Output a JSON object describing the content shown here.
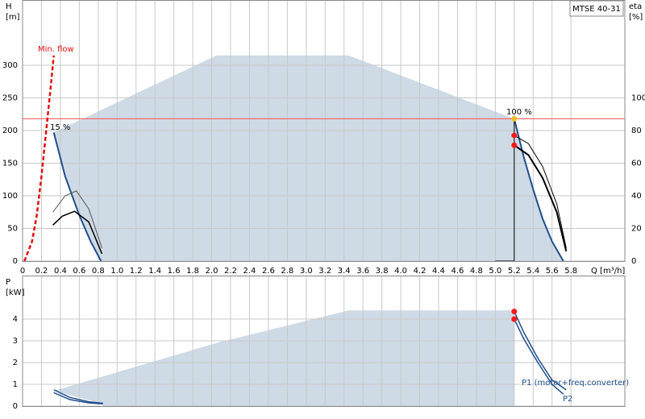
{
  "chart_data": [
    {
      "type": "line",
      "title": "MTSE 40-31",
      "y_label": [
        "H",
        "[m]"
      ],
      "y2_label": [
        "eta",
        "[%]"
      ],
      "x_label": "Q [m³/h]",
      "xlim": [
        0,
        6.37
      ],
      "ylim": [
        0,
        400
      ],
      "y2lim": [
        0,
        160
      ],
      "xticks": [
        0,
        0.2,
        0.4,
        0.6,
        0.8,
        {
          "value": 1,
          "label": "1.0"
        },
        1.2,
        1.4,
        1.6,
        1.8,
        {
          "value": 2,
          "label": "2.0"
        },
        2.2,
        2.4,
        2.6,
        2.8,
        {
          "value": 3,
          "label": "3.0"
        },
        3.2,
        3.4,
        3.6,
        3.8,
        {
          "value": 4,
          "label": "4.0"
        },
        4.2,
        4.4,
        4.6,
        4.8,
        {
          "value": 5,
          "label": "5.0"
        },
        5.2,
        5.4,
        5.6,
        5.8
      ],
      "yticks": [
        0,
        50,
        100,
        150,
        200,
        250,
        300
      ],
      "y2ticks": [
        0,
        20,
        40,
        60,
        80,
        100
      ],
      "grid": true,
      "annotations": [
        "Min. flow",
        "15 %",
        "100 %"
      ],
      "hlines": [
        {
          "value": 218,
          "color": "#ff5050"
        }
      ],
      "series": [
        {
          "fill": "#c5d3e1",
          "color": "#c5d3e1",
          "x": [
            0.33,
            2.05,
            3.45,
            5.2,
            5.3,
            5.4,
            5.5,
            5.6,
            5.72,
            0.83,
            0.72,
            0.6,
            0.45
          ],
          "values": [
            197,
            315,
            315,
            218,
            160,
            110,
            65,
            30,
            0,
            0,
            30,
            70,
            130
          ]
        },
        {
          "color": "#e01010",
          "dash": true,
          "width": 2.5,
          "x": [
            0.02,
            0.1,
            0.15,
            0.2,
            0.25,
            0.3,
            0.33
          ],
          "values": [
            0,
            30,
            70,
            130,
            200,
            270,
            315
          ]
        },
        {
          "color": "#1f4e8c",
          "width": 2,
          "x": [
            0.33,
            0.45,
            0.6,
            0.72,
            0.83
          ],
          "values": [
            197,
            130,
            70,
            30,
            0
          ]
        },
        {
          "color": "#1f4e8c",
          "width": 2,
          "x": [
            5.2,
            5.3,
            5.4,
            5.5,
            5.6,
            5.72
          ],
          "values": [
            218,
            160,
            110,
            65,
            30,
            0
          ]
        },
        {
          "color": "#000000",
          "width": 1,
          "x": [
            5.2,
            5.0
          ],
          "values": [
            0,
            0
          ]
        },
        {
          "color": "#000000",
          "width": 1,
          "x": [
            5.2,
            5.2
          ],
          "values": [
            0,
            218
          ]
        },
        {
          "color": "#555555",
          "width": 1,
          "axis": "y2",
          "x": [
            0.32,
            0.45,
            0.57,
            0.7,
            0.84
          ],
          "values": [
            30,
            40,
            43,
            32,
            8
          ]
        },
        {
          "color": "#000000",
          "width": 1.5,
          "axis": "y2",
          "x": [
            0.32,
            0.42,
            0.55,
            0.7,
            0.84
          ],
          "values": [
            22,
            27.5,
            30.5,
            24,
            4.4
          ]
        },
        {
          "color": "#000000",
          "width": 1,
          "axis": "y2",
          "x": [
            5.2,
            5.35,
            5.5,
            5.65,
            5.75
          ],
          "values": [
            77,
            72,
            58,
            35,
            8
          ]
        },
        {
          "color": "#000000",
          "width": 2,
          "axis": "y2",
          "x": [
            5.2,
            5.35,
            5.5,
            5.65,
            5.75
          ],
          "values": [
            71,
            65,
            51,
            30,
            6
          ]
        },
        {
          "color": "#f0c020",
          "marker": true,
          "x": [
            5.2
          ],
          "values": [
            218
          ]
        },
        {
          "color": "#ff1a1a",
          "marker": true,
          "axis": "y2",
          "x": [
            5.2,
            5.2
          ],
          "values": [
            77,
            71
          ]
        }
      ]
    },
    {
      "type": "line",
      "y_label": [
        "P",
        "[kW]"
      ],
      "xlim": [
        0,
        6.37
      ],
      "ylim": [
        0,
        6
      ],
      "xticks": [
        0,
        0.2,
        0.4,
        0.6,
        0.8,
        1,
        1.2,
        1.4,
        1.6,
        1.8,
        2,
        2.2,
        2.4,
        2.6,
        2.8,
        3,
        3.2,
        3.4,
        3.6,
        3.8,
        4,
        4.2,
        4.4,
        4.6,
        4.8,
        5,
        5.2,
        5.4,
        5.6,
        5.8
      ],
      "yticks": [
        0,
        1,
        2,
        3,
        4
      ],
      "grid": true,
      "annotations": [
        "P1 (motor+freq.converter)",
        "P2"
      ],
      "series": [
        {
          "fill": "#c5d3e1",
          "color": "#c5d3e1",
          "x": [
            0.33,
            2.05,
            3.45,
            5.2,
            5.2,
            0.85,
            0.85
          ],
          "values": [
            0.7,
            2.9,
            4.4,
            4.4,
            0,
            0,
            0.1
          ]
        },
        {
          "color": "#1f4e8c",
          "width": 1.5,
          "x": [
            0.33,
            0.5,
            0.7,
            0.85
          ],
          "values": [
            0.75,
            0.4,
            0.2,
            0.13
          ]
        },
        {
          "color": "#1f4e8c",
          "width": 1.5,
          "x": [
            0.33,
            0.5,
            0.7,
            0.85
          ],
          "values": [
            0.62,
            0.3,
            0.15,
            0.1
          ]
        },
        {
          "color": "#1f4e8c",
          "width": 1.5,
          "x": [
            5.2,
            5.3,
            5.45,
            5.6,
            5.75
          ],
          "values": [
            4.35,
            3.4,
            2.2,
            1.2,
            0.75
          ]
        },
        {
          "color": "#1f4e8c",
          "width": 1.5,
          "x": [
            5.2,
            5.3,
            5.45,
            5.6,
            5.72
          ],
          "values": [
            4.0,
            3.1,
            2.0,
            1.0,
            0.55
          ]
        },
        {
          "color": "#ff1a1a",
          "marker": true,
          "x": [
            5.2,
            5.2
          ],
          "values": [
            4.35,
            4.0
          ]
        }
      ]
    }
  ]
}
